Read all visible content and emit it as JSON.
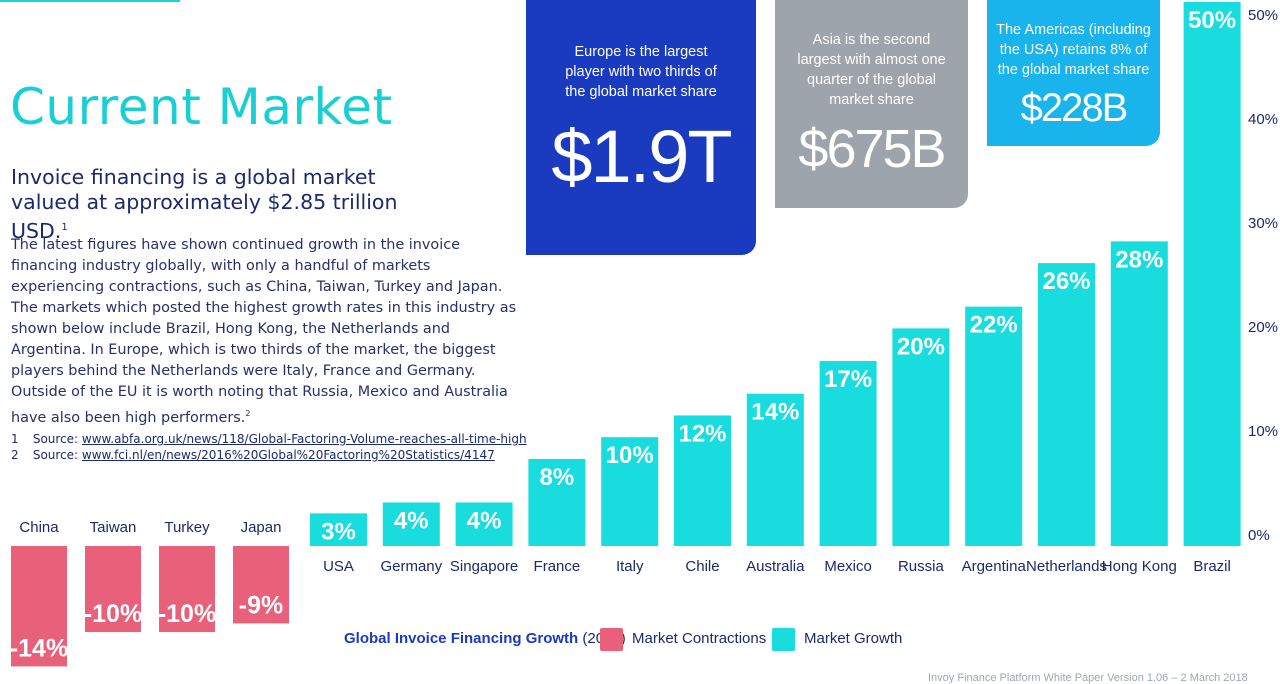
{
  "header": {
    "title": "Current Market",
    "lead_text": "Invoice financing is a global market valued at approximately $2.85 trillion USD.",
    "lead_sup": "1",
    "body_text": "The latest figures have shown continued growth in the invoice financing industry globally, with only a handful of markets experiencing contractions, such as China, Taiwan, Turkey and Japan. The markets which posted the highest growth rates in this industry as shown below include Brazil, Hong Kong, the Netherlands and Argentina. In Europe, which is two thirds of the market, the biggest players behind the Netherlands were Italy, France and Germany. Outside of the EU it is worth noting that Russia, Mexico and Australia have also been high performers.",
    "body_sup": "2"
  },
  "footnotes": [
    {
      "num": "1",
      "label": "Source:",
      "url": "www.abfa.org.uk/news/118/Global-Factoring-Volume-reaches-all-time-high"
    },
    {
      "num": "2",
      "label": "Source:",
      "url": "www.fci.nl/en/news/2016%20Global%20Factoring%20Statistics/4147"
    }
  ],
  "cards": {
    "europe": {
      "text": "Europe is the largest player with two thirds of the global market share",
      "value": "$1.9T",
      "color": "#1a3bbf"
    },
    "asia": {
      "text": "Asia is the second largest with almost one quarter of the global market share",
      "value": "$675B",
      "color": "#9ea4ab"
    },
    "americas": {
      "text": "The Americas (including the USA) retains 8% of the global market share",
      "value": "$228B",
      "color": "#19b4ec"
    }
  },
  "footer": "Invoy Finance Platform White Paper Version 1.06 – 2 March 2018",
  "colors": {
    "growth": "#19dcdf",
    "contraction": "#e8607a",
    "navy": "#1a2a6c"
  },
  "chart_data": {
    "type": "bar",
    "title": "Global Invoice Financing Growth",
    "subtitle": "(2016)",
    "ylim": [
      0,
      50
    ],
    "yticks": [
      "0%",
      "10%",
      "20%",
      "30%",
      "40%",
      "50%"
    ],
    "legend": [
      {
        "label": "Market Contractions",
        "color": "#e8607a"
      },
      {
        "label": "Market Growth",
        "color": "#19dcdf"
      }
    ],
    "contractions": {
      "name": "Market Contractions",
      "categories": [
        "China",
        "Taiwan",
        "Turkey",
        "Japan"
      ],
      "values": [
        -14,
        -10,
        -10,
        -9
      ],
      "labels": [
        "-14%",
        "-10%",
        "-10%",
        "-9%"
      ]
    },
    "growth": {
      "name": "Market Growth",
      "categories": [
        "USA",
        "Germany",
        "Singapore",
        "France",
        "Italy",
        "Chile",
        "Australia",
        "Mexico",
        "Russia",
        "Argentina",
        "Netherlands",
        "Hong Kong",
        "Brazil"
      ],
      "values": [
        3,
        4,
        4,
        8,
        10,
        12,
        14,
        17,
        20,
        22,
        26,
        28,
        50
      ],
      "labels": [
        "3%",
        "4%",
        "4%",
        "8%",
        "10%",
        "12%",
        "14%",
        "17%",
        "20%",
        "22%",
        "26%",
        "28%",
        "50%"
      ]
    }
  }
}
